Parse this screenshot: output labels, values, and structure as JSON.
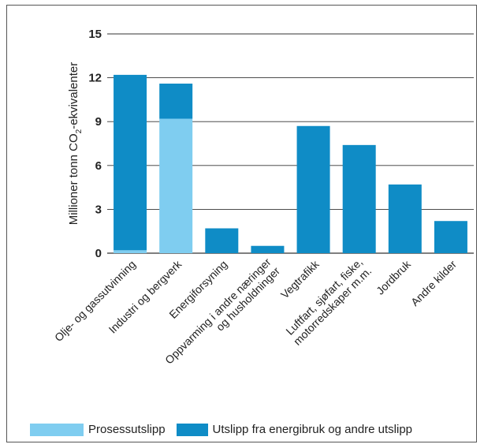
{
  "chart_data": {
    "type": "bar",
    "stacked": true,
    "ylabel_main": "Millioner tonn CO",
    "ylabel_sub": "2",
    "ylabel_tail": "-ekvivalenter",
    "ylim": [
      0,
      15
    ],
    "yticks": [
      "0",
      "3",
      "6",
      "9",
      "12",
      "15"
    ],
    "grid": true,
    "legend_position": "bottom",
    "categories": [
      [
        "Olje- og gassutvinning"
      ],
      [
        "Industri og bergverk"
      ],
      [
        "Energiforsyning"
      ],
      [
        "Oppvarming i andre næringer",
        "og husholdninger"
      ],
      [
        "Vegtrafikk"
      ],
      [
        "Luftfart, sjøfart, fiske,",
        "motorredskaper m.m."
      ],
      [
        "Jordbruk"
      ],
      [
        "Andre kilder"
      ]
    ],
    "series": [
      {
        "name": "Prosessutslipp",
        "color": "#7fcdf0",
        "values": [
          0.2,
          9.2,
          0,
          0,
          0,
          0,
          0,
          0
        ]
      },
      {
        "name": "Utslipp fra energibruk og andre utslipp",
        "color": "#0f8cc6",
        "values": [
          12.0,
          2.4,
          1.7,
          0.5,
          8.7,
          7.4,
          4.7,
          2.2
        ]
      }
    ]
  }
}
